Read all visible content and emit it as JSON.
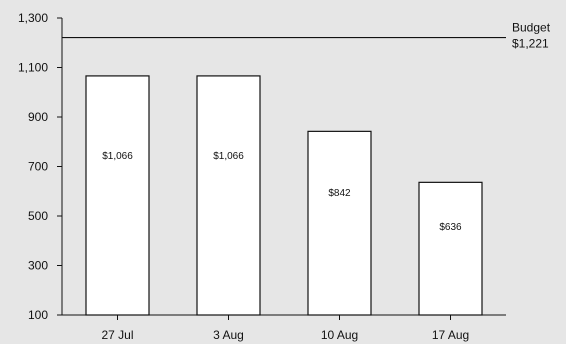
{
  "chart_data": {
    "type": "bar",
    "title": "",
    "xlabel": "",
    "ylabel": "",
    "categories": [
      "27 Jul",
      "3 Aug",
      "10 Aug",
      "17 Aug"
    ],
    "values": [
      1066,
      1066,
      842,
      636
    ],
    "data_labels": [
      "$1,066",
      "$1,066",
      "$842",
      "$636"
    ],
    "ylim": [
      100,
      1300
    ],
    "yticks": [
      100,
      300,
      500,
      700,
      900,
      1100,
      1300
    ],
    "ytick_labels": [
      "100",
      "300",
      "500",
      "700",
      "900",
      "1,100",
      "1,300"
    ],
    "grid": false,
    "reference_line": {
      "value": 1221,
      "label": "Budget",
      "value_label": "$1,221"
    },
    "colors": {
      "background": "#e6e6e6",
      "bar_fill": "#ffffff",
      "bar_stroke": "#111111",
      "axis": "#111111"
    }
  }
}
